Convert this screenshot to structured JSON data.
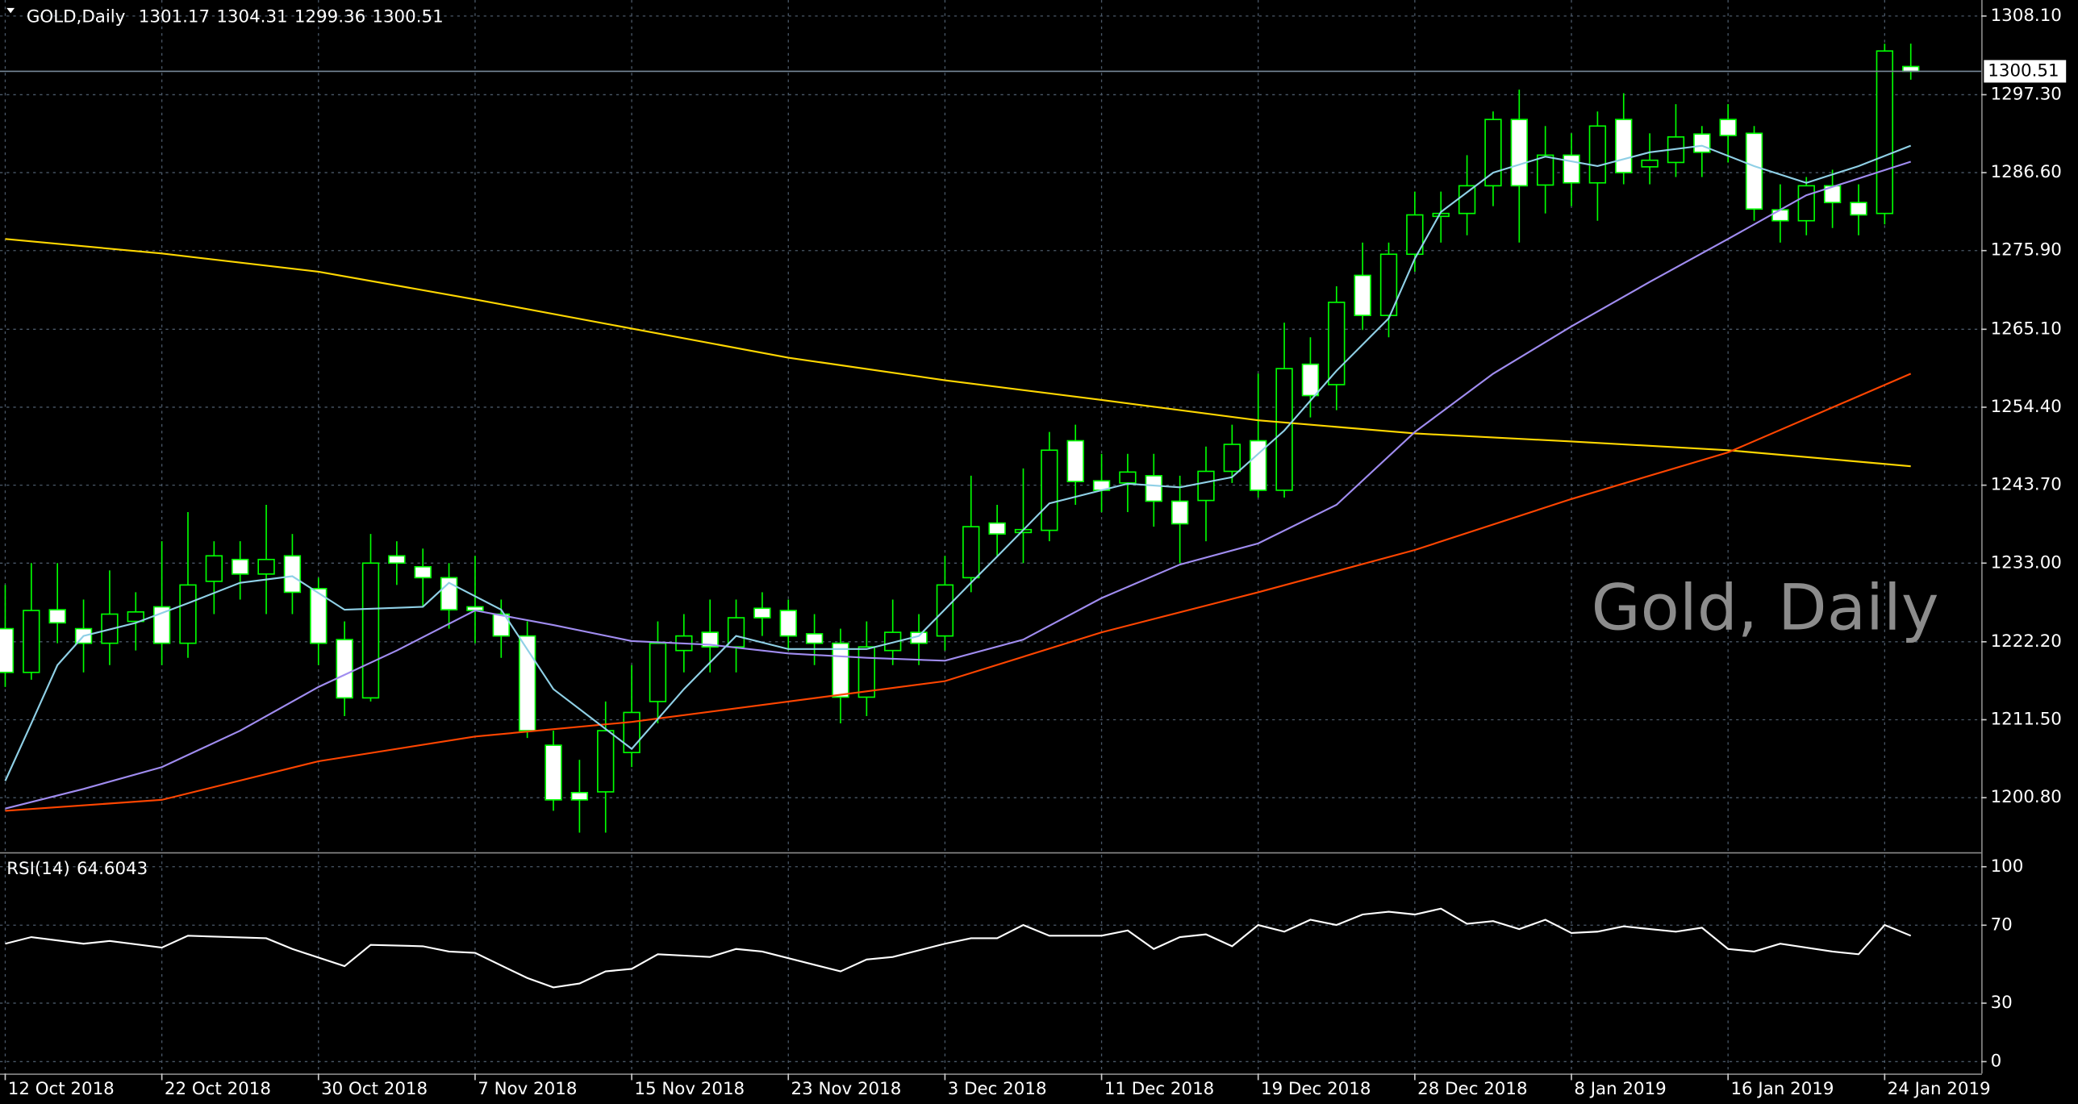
{
  "chart_data": [
    {
      "type": "candlestick",
      "title": "GOLD,Daily",
      "watermark": "Gold, Daily",
      "xlim": [
        -0.2,
        75.7
      ],
      "ylim": [
        1193.5,
        1310.3
      ],
      "xticks": [
        {
          "value": 0,
          "label": "12 Oct 2018"
        },
        {
          "value": 6,
          "label": "22 Oct 2018"
        },
        {
          "value": 12,
          "label": "30 Oct 2018"
        },
        {
          "value": 18,
          "label": "7 Nov 2018"
        },
        {
          "value": 24,
          "label": "15 Nov 2018"
        },
        {
          "value": 30,
          "label": "23 Nov 2018"
        },
        {
          "value": 36,
          "label": "3 Dec 2018"
        },
        {
          "value": 42,
          "label": "11 Dec 2018"
        },
        {
          "value": 48,
          "label": "19 Dec 2018"
        },
        {
          "value": 54,
          "label": "28 Dec 2018"
        },
        {
          "value": 60,
          "label": "8 Jan 2019"
        },
        {
          "value": 66,
          "label": "16 Jan 2019"
        },
        {
          "value": 72,
          "label": "24 Jan 2019"
        }
      ],
      "yticks": [
        {
          "value": 1308.1,
          "label": "1308.10"
        },
        {
          "value": 1297.3,
          "label": "1297.30"
        },
        {
          "value": 1286.6,
          "label": "1286.60"
        },
        {
          "value": 1275.9,
          "label": "1275.90"
        },
        {
          "value": 1265.1,
          "label": "1265.10"
        },
        {
          "value": 1254.4,
          "label": "1254.40"
        },
        {
          "value": 1243.7,
          "label": "1243.70"
        },
        {
          "value": 1233,
          "label": "1233.00"
        },
        {
          "value": 1222.2,
          "label": "1222.20"
        },
        {
          "value": 1211.5,
          "label": "1211.50"
        },
        {
          "value": 1200.8,
          "label": "1200.80"
        }
      ],
      "grid": true,
      "bull_color": "#000000",
      "bear_color": "#ffffff",
      "wick_color": "#00ff00",
      "price_line_color": "#778899",
      "open": [
        1224,
        1218,
        1226.6,
        1224,
        1222,
        1225,
        1227,
        1222,
        1230.5,
        1233.5,
        1231.5,
        1234,
        1229.5,
        1222.5,
        1214.5,
        1234,
        1232.5,
        1231,
        1227,
        1226,
        1223,
        1208,
        1201.5,
        1201.6,
        1207,
        1214,
        1221,
        1223.5,
        1221.5,
        1226.8,
        1226.5,
        1223.3,
        1222,
        1214.6,
        1221,
        1223.5,
        1223,
        1231,
        1238.5,
        1237.2,
        1237.5,
        1249.8,
        1244.3,
        1244,
        1245,
        1241.5,
        1241.6,
        1245.6,
        1249.8,
        1243,
        1260.3,
        1257.5,
        1272.5,
        1267,
        1275.4,
        1280.6,
        1281,
        1284.8,
        1293.9,
        1284.9,
        1289,
        1285.2,
        1293.9,
        1287.4,
        1288,
        1291.9,
        1293.9,
        1292,
        1281.5,
        1280,
        1284.8,
        1282.5,
        1281,
        1301.17
      ],
      "high": [
        1230,
        1233,
        1233,
        1228,
        1232,
        1229,
        1236,
        1240,
        1236,
        1236,
        1241,
        1237,
        1231,
        1225,
        1237,
        1236,
        1235,
        1233,
        1234,
        1228,
        1225,
        1210,
        1206,
        1214,
        1219,
        1225,
        1226,
        1228,
        1228,
        1229,
        1228,
        1226,
        1224,
        1225,
        1228,
        1226,
        1234,
        1245,
        1241,
        1246,
        1251,
        1252,
        1248,
        1248,
        1248,
        1245,
        1249,
        1252,
        1259,
        1266,
        1264,
        1271,
        1277,
        1277,
        1284,
        1284,
        1289,
        1295,
        1298,
        1293,
        1292,
        1295,
        1297.5,
        1292,
        1296,
        1293,
        1296,
        1293,
        1285,
        1286,
        1287,
        1285,
        1304.3,
        1304.31
      ],
      "low": [
        1216,
        1217,
        1222,
        1218,
        1219,
        1221,
        1219,
        1220,
        1226,
        1228,
        1226,
        1226,
        1219,
        1212,
        1214,
        1230,
        1227,
        1224,
        1222,
        1220,
        1209,
        1199,
        1196,
        1196,
        1205,
        1211,
        1218,
        1218,
        1218,
        1223,
        1221,
        1219,
        1211,
        1212,
        1219,
        1219,
        1221,
        1229,
        1234,
        1233,
        1236,
        1241,
        1240,
        1240,
        1238,
        1233,
        1236,
        1244,
        1242,
        1242,
        1253,
        1254,
        1265,
        1264,
        1273,
        1277,
        1278,
        1282,
        1277,
        1281,
        1282,
        1280,
        1285,
        1285,
        1286,
        1286,
        1288,
        1280,
        1277,
        1278,
        1279,
        1278,
        1279.5,
        1299.36
      ],
      "close": [
        1218,
        1226.5,
        1224.8,
        1222,
        1226,
        1226.3,
        1222,
        1230,
        1234,
        1231.5,
        1233.5,
        1229,
        1222,
        1214.5,
        1233,
        1233,
        1231,
        1226.6,
        1226.5,
        1223,
        1210,
        1200.5,
        1200.5,
        1210,
        1212.5,
        1222,
        1223,
        1221.5,
        1225.5,
        1225.5,
        1223,
        1222,
        1214.6,
        1221.5,
        1223.5,
        1222,
        1230,
        1238,
        1237,
        1237.6,
        1248.5,
        1244.2,
        1243,
        1245.5,
        1241.5,
        1238.4,
        1245.6,
        1249.3,
        1243,
        1259.7,
        1256,
        1268.8,
        1267,
        1275.4,
        1280.8,
        1281,
        1284.8,
        1293.9,
        1284.8,
        1289,
        1285.2,
        1293,
        1286.6,
        1288.3,
        1291.5,
        1289.4,
        1291.7,
        1281.6,
        1280,
        1284.8,
        1282.5,
        1280.8,
        1303.3,
        1300.51
      ],
      "series": [
        {
          "color": "#ffd700",
          "x": [
            0,
            6,
            12,
            18,
            24,
            30,
            36,
            42,
            48,
            54,
            60,
            66,
            73
          ],
          "values": [
            1277.5,
            1275.5,
            1273,
            1269.2,
            1265.2,
            1261.2,
            1258.1,
            1255.4,
            1252.6,
            1250.8,
            1249.7,
            1248.5,
            1246.3
          ]
        },
        {
          "color": "#ff4500",
          "x": [
            0,
            6,
            12,
            18,
            24,
            30,
            36,
            42,
            48,
            54,
            60,
            66,
            73
          ],
          "values": [
            1199,
            1200.5,
            1205.8,
            1209.2,
            1211.2,
            1214,
            1216.8,
            1223.5,
            1229,
            1234.8,
            1241.8,
            1248.2,
            1259
          ]
        },
        {
          "color": "#a08cf0",
          "x": [
            0,
            3,
            6,
            9,
            12,
            15,
            18,
            21,
            24,
            27,
            30,
            33,
            36,
            39,
            42,
            45,
            48,
            51,
            54,
            57,
            60,
            63,
            66,
            69,
            73
          ],
          "values": [
            1199.3,
            1202,
            1205,
            1210,
            1216,
            1221,
            1226.5,
            1224.5,
            1222.3,
            1221.8,
            1220.6,
            1220,
            1219.6,
            1222.5,
            1228.2,
            1232.8,
            1235.7,
            1241,
            1251,
            1259,
            1265.5,
            1271.6,
            1277.5,
            1283.5,
            1288.1
          ]
        },
        {
          "color": "#8fd0e6",
          "x": [
            0,
            1,
            2,
            3,
            5,
            7,
            9,
            11,
            13,
            16,
            17,
            19,
            21,
            24,
            26,
            28,
            30,
            33,
            35,
            37,
            38,
            40,
            43,
            45,
            47,
            49,
            51,
            53,
            54,
            55,
            57,
            59,
            61,
            63,
            65,
            67,
            69,
            71,
            73
          ],
          "values": [
            1203.1,
            1211,
            1219,
            1223,
            1224.8,
            1227.5,
            1230.3,
            1231.2,
            1226.6,
            1227,
            1230.3,
            1226.6,
            1215.7,
            1207.5,
            1215.7,
            1223,
            1221.2,
            1221.2,
            1223,
            1230.3,
            1233.9,
            1241.2,
            1243.9,
            1243.4,
            1244.8,
            1251.2,
            1259.4,
            1266.6,
            1274.8,
            1281.2,
            1286.6,
            1288.8,
            1287.5,
            1289.4,
            1290.3,
            1287.5,
            1285.2,
            1287.5,
            1290.3
          ]
        }
      ]
    },
    {
      "type": "line",
      "title": "RSI(14)",
      "xlim": [
        -0.2,
        75.7
      ],
      "ylim": [
        -6.1,
        106.1
      ],
      "yticks": [
        0,
        30,
        70,
        100
      ],
      "grid": true,
      "series": [
        {
          "color": "#ffffff",
          "x": [
            0,
            1,
            3,
            4,
            6,
            7,
            10,
            11,
            13,
            14,
            16,
            17,
            18,
            20,
            21,
            22,
            23,
            24,
            25,
            27,
            28,
            29,
            32,
            33,
            34,
            36,
            37,
            38,
            39,
            40,
            42,
            43,
            44,
            45,
            46,
            47,
            48,
            49,
            50,
            51,
            52,
            53,
            54,
            55,
            56,
            57,
            58,
            59,
            60,
            61,
            62,
            63,
            64,
            65,
            66,
            67,
            68,
            70,
            71,
            72,
            73
          ],
          "values": [
            60.5,
            63.9,
            60.5,
            61.9,
            58.5,
            64.6,
            63.3,
            57.8,
            49,
            59.9,
            59.2,
            56.5,
            55.8,
            42.9,
            38.1,
            40.1,
            46.3,
            47.6,
            55.1,
            53.7,
            57.8,
            56.5,
            46.3,
            52.4,
            53.7,
            60.5,
            63.3,
            63.3,
            70.1,
            64.6,
            64.6,
            67.3,
            57.8,
            63.9,
            65.3,
            59.2,
            70.1,
            66.7,
            72.8,
            70.1,
            75.5,
            76.9,
            75.5,
            78.5,
            70.7,
            72.1,
            68,
            72.8,
            66,
            66.7,
            69.4,
            68,
            66.7,
            68.7,
            57.8,
            56.5,
            60.5,
            56.5,
            55.1,
            70.1,
            64.6043
          ]
        }
      ]
    }
  ]
}
